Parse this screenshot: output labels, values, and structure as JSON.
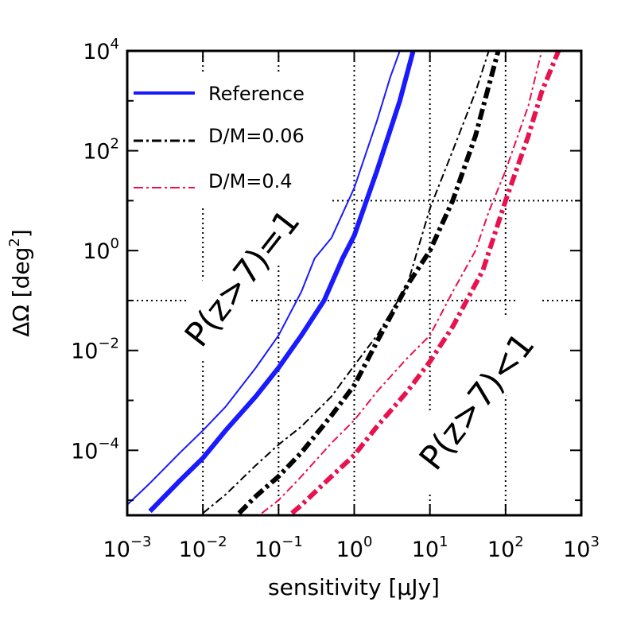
{
  "chart_data": {
    "type": "line",
    "x_scale": "log",
    "y_scale": "log",
    "xlim": [
      0.001,
      1000
    ],
    "ylim": [
      5e-06,
      10000
    ],
    "xlabel": "sensitivity [μJy]",
    "ylabel_parts": {
      "main": "ΔΩ [deg",
      "exp": "2",
      "close": "]"
    },
    "x_ticks": [
      {
        "base": "10",
        "exp": "−3",
        "value": 0.001
      },
      {
        "base": "10",
        "exp": "−2",
        "value": 0.01
      },
      {
        "base": "10",
        "exp": "−1",
        "value": 0.1
      },
      {
        "base": "10",
        "exp": "0",
        "value": 1
      },
      {
        "base": "10",
        "exp": "1",
        "value": 10
      },
      {
        "base": "10",
        "exp": "2",
        "value": 100
      },
      {
        "base": "10",
        "exp": "3",
        "value": 1000
      }
    ],
    "y_ticks": [
      {
        "base": "10",
        "exp": "4",
        "value": 10000
      },
      {
        "base": "10",
        "exp": "2",
        "value": 100
      },
      {
        "base": "10",
        "exp": "0",
        "value": 1
      },
      {
        "base": "10",
        "exp": "−2",
        "value": 0.01
      },
      {
        "base": "10",
        "exp": "−4",
        "value": 0.0001
      }
    ],
    "grid": "dotted vertical at each x decade, dotted horizontal at 10 and 0.1",
    "legend_position": "top-left",
    "legend": [
      {
        "label": "Reference",
        "color": "#1a1aff",
        "style": "solid"
      },
      {
        "label": "D/M=0.06",
        "color": "#000000",
        "style": "dash-dot"
      },
      {
        "label": "D/M=0.4",
        "color": "#e8124f",
        "style": "dash-dot"
      }
    ],
    "annotations": [
      {
        "text": "P(z>7)=1"
      },
      {
        "text": "P(z>7)<1"
      }
    ],
    "series": [
      {
        "name": "Reference (P(z>7)=1)",
        "color": "#1a1aff",
        "style": "solid",
        "weight": "thin",
        "x": [
          0.001,
          0.002,
          0.005,
          0.01,
          0.02,
          0.05,
          0.1,
          0.2,
          0.3,
          0.5,
          1,
          2,
          3,
          4
        ],
        "y": [
          8.1e-06,
          2.2e-05,
          9e-05,
          0.00025,
          0.00075,
          0.0045,
          0.02,
          0.15,
          0.7,
          1.8,
          18,
          400,
          3000,
          10000
        ]
      },
      {
        "name": "Reference (P(z>7)<1)",
        "color": "#1a1aff",
        "style": "solid",
        "weight": "thick",
        "x": [
          0.002,
          0.005,
          0.01,
          0.02,
          0.05,
          0.1,
          0.2,
          0.4,
          0.7,
          1,
          2,
          4,
          6
        ],
        "y": [
          6e-06,
          2.5e-05,
          7e-05,
          0.00025,
          0.0012,
          0.0045,
          0.02,
          0.1,
          0.7,
          2,
          40,
          1000,
          10000
        ]
      },
      {
        "name": "D/M=0.06 (P(z>7)=1)",
        "color": "#000000",
        "style": "dash-dot",
        "weight": "thin",
        "x": [
          0.01,
          0.02,
          0.05,
          0.1,
          0.2,
          0.5,
          1,
          2,
          5,
          10,
          20,
          40,
          60
        ],
        "y": [
          5.5e-06,
          1.3e-05,
          5e-05,
          0.00013,
          0.0003,
          0.0012,
          0.005,
          0.02,
          0.2,
          7,
          100,
          1500,
          10000
        ]
      },
      {
        "name": "D/M=0.06 (P(z>7)<1)",
        "color": "#000000",
        "style": "dash-dot",
        "weight": "thick",
        "x": [
          0.03,
          0.05,
          0.1,
          0.2,
          0.5,
          1,
          2,
          5,
          10,
          20,
          40,
          60,
          80
        ],
        "y": [
          5.5e-06,
          1.2e-05,
          3e-05,
          9e-05,
          0.0005,
          0.002,
          0.015,
          0.2,
          1,
          10,
          200,
          2000,
          10000
        ]
      },
      {
        "name": "D/M=0.4 (P(z>7)=1)",
        "color": "#e8124f",
        "style": "dash-dot",
        "weight": "thin",
        "x": [
          0.06,
          0.1,
          0.2,
          0.5,
          1,
          2,
          5,
          10,
          20,
          40,
          60,
          100,
          200,
          300
        ],
        "y": [
          5.5e-06,
          1e-05,
          3e-05,
          0.00014,
          0.0004,
          0.0015,
          0.007,
          0.02,
          0.15,
          1,
          6,
          40,
          800,
          10000
        ]
      },
      {
        "name": "D/M=0.4 (P(z>7)<1)",
        "color": "#e8124f",
        "style": "dash-dot",
        "weight": "thick",
        "x": [
          0.15,
          0.2,
          0.5,
          1,
          2,
          5,
          10,
          20,
          50,
          100,
          200,
          300,
          500
        ],
        "y": [
          5.5e-06,
          8e-06,
          3e-05,
          8e-05,
          0.0003,
          0.0015,
          0.006,
          0.03,
          0.4,
          10,
          200,
          1500,
          10000
        ]
      }
    ]
  }
}
